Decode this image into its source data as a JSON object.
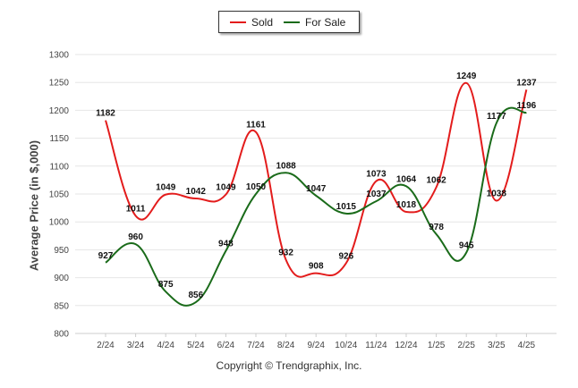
{
  "legend": {
    "sold_label": "Sold",
    "for_sale_label": "For Sale",
    "sold_color": "#e31c1c",
    "for_sale_color": "#1a6b1a"
  },
  "footer_text": "Copyright © Trendgraphix, Inc.",
  "chart_data": {
    "type": "line",
    "categories": [
      "2/24",
      "3/24",
      "4/24",
      "5/24",
      "6/24",
      "7/24",
      "8/24",
      "9/24",
      "10/24",
      "11/24",
      "12/24",
      "1/25",
      "2/25",
      "3/25",
      "4/25"
    ],
    "ylabel": "Average Price (in $,000)",
    "ylim": [
      800,
      1300
    ],
    "yticks": [
      800,
      850,
      900,
      950,
      1000,
      1050,
      1100,
      1150,
      1200,
      1250,
      1300
    ],
    "grid": true,
    "legend_position": "top-center",
    "series": [
      {
        "name": "Sold",
        "color": "#e31c1c",
        "values": [
          1182,
          1011,
          1049,
          1042,
          1049,
          1161,
          932,
          908,
          926,
          1073,
          1018,
          1062,
          1249,
          1038,
          1237
        ]
      },
      {
        "name": "For Sale",
        "color": "#1a6b1a",
        "values": [
          927,
          960,
          875,
          856,
          948,
          1050,
          1088,
          1047,
          1015,
          1037,
          1064,
          978,
          945,
          1177,
          1196
        ]
      }
    ]
  }
}
